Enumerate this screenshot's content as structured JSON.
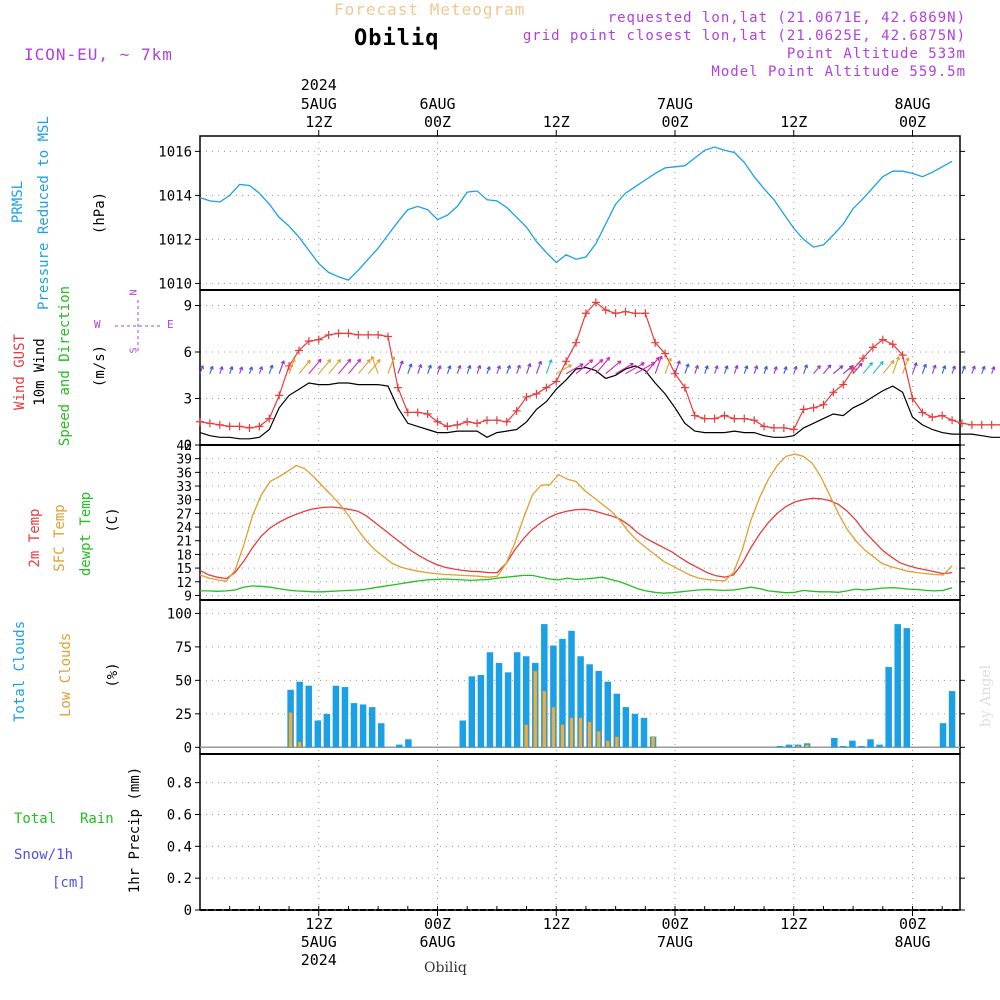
{
  "header": {
    "title": "Forecast Meteogram",
    "location": "Obiliq",
    "model": "ICON-EU, ~ 7km",
    "requested": "requested lon,lat (21.0671E, 42.6869N)",
    "gridpoint": "grid point closest lon,lat (21.0625E, 42.6875N)",
    "point_alt": "Point Altitude 533m",
    "model_alt": "Model Point Altitude 559.5m",
    "footer_location": "Obiliq",
    "watermark": "by Angel"
  },
  "colors": {
    "pressure": "#1ba0e6",
    "gust": "#e83c3c",
    "wind": "#000000",
    "winddir": "#20c020",
    "sfc": "#e0a030",
    "dewpt": "#20c020",
    "cloud_total": "#1ba0e6",
    "cloud_low": "#e0b050",
    "rain": "#20c020",
    "snow": "#5050e0",
    "header_title": "#f0c890",
    "header_meta": "#b040e0"
  },
  "time_axis": {
    "top_year": "2024",
    "ticks": [
      {
        "hour": 12,
        "top": [
          "5AUG",
          "12Z"
        ],
        "bottom": [
          "12Z",
          "5AUG",
          "2024"
        ]
      },
      {
        "hour": 24,
        "top": [
          "6AUG",
          "00Z"
        ],
        "bottom": [
          "00Z",
          "6AUG"
        ]
      },
      {
        "hour": 36,
        "top": [
          "12Z"
        ],
        "bottom": [
          "12Z"
        ]
      },
      {
        "hour": 48,
        "top": [
          "7AUG",
          "00Z"
        ],
        "bottom": [
          "00Z",
          "7AUG"
        ]
      },
      {
        "hour": 60,
        "top": [
          "12Z"
        ],
        "bottom": [
          "12Z"
        ]
      },
      {
        "hour": 72,
        "top": [
          "8AUG",
          "00Z"
        ],
        "bottom": [
          "00Z",
          "8AUG"
        ]
      }
    ]
  },
  "panels": {
    "pressure": {
      "labels": [
        "PRMSL",
        "Pressure Reduced to MSL"
      ],
      "unit": "(hPa)"
    },
    "wind": {
      "labels": [
        "Wind GUST",
        "10m Wind",
        "Speed and Direction"
      ],
      "unit": "(m/s)",
      "compass": {
        "n": "N",
        "s": "S",
        "w": "W",
        "e": "E"
      }
    },
    "temp": {
      "labels": [
        "2m Temp",
        "SFC Temp",
        "dewpt Temp"
      ],
      "unit": "(C)"
    },
    "cloud": {
      "labels": [
        "Total Clouds",
        "Low Clouds"
      ],
      "unit": "(%)"
    },
    "precip": {
      "labels": [
        "Total",
        "Rain",
        "Snow/1h",
        "[cm]"
      ],
      "unit": "1hr Precip (mm)"
    }
  },
  "chart_data": [
    {
      "type": "line",
      "title": "PRMSL Pressure Reduced to MSL",
      "ylabel": "(hPa)",
      "x_hours": "0..76 step 1 from 2024-08-05 00Z",
      "ylim": [
        1009.7,
        1016.7
      ],
      "yticks": [
        1010,
        1012,
        1014,
        1016
      ],
      "series": [
        {
          "name": "PRMSL",
          "values": [
            1013.9,
            1013.75,
            1013.7,
            1014.0,
            1014.5,
            1014.45,
            1014.1,
            1013.6,
            1013.0,
            1012.6,
            1012.1,
            1011.5,
            1010.9,
            1010.5,
            1010.3,
            1010.15,
            1010.6,
            1011.1,
            1011.6,
            1012.2,
            1012.8,
            1013.35,
            1013.5,
            1013.35,
            1012.9,
            1013.1,
            1013.5,
            1014.15,
            1014.2,
            1013.8,
            1013.75,
            1013.45,
            1013.0,
            1012.55,
            1011.9,
            1011.4,
            1010.95,
            1011.3,
            1011.1,
            1011.2,
            1011.8,
            1012.7,
            1013.6,
            1014.1,
            1014.4,
            1014.7,
            1015.0,
            1015.25,
            1015.3,
            1015.35,
            1015.7,
            1016.05,
            1016.2,
            1016.05,
            1015.95,
            1015.5,
            1014.85,
            1014.3,
            1013.8,
            1013.15,
            1012.5,
            1012.0,
            1011.65,
            1011.75,
            1012.2,
            1012.7,
            1013.4,
            1013.85,
            1014.35,
            1014.85,
            1015.1,
            1015.1,
            1015.0,
            1014.85,
            1015.05,
            1015.3,
            1015.55
          ]
        }
      ]
    },
    {
      "type": "line",
      "title": "Wind GUST / 10m Wind Speed and Direction",
      "ylabel": "(m/s)",
      "ylim": [
        0,
        10
      ],
      "yticks": [
        0,
        3,
        6,
        9
      ],
      "series": [
        {
          "name": "Wind GUST",
          "values": [
            1.5,
            1.4,
            1.3,
            1.2,
            1.2,
            1.1,
            1.2,
            1.7,
            3.2,
            5.1,
            6.1,
            6.7,
            6.8,
            7.1,
            7.2,
            7.2,
            7.1,
            7.1,
            7.1,
            7.0,
            3.7,
            2.1,
            2.1,
            2.0,
            1.5,
            1.2,
            1.3,
            1.5,
            1.4,
            1.6,
            1.6,
            1.5,
            2.2,
            3.1,
            3.3,
            3.7,
            4.1,
            5.4,
            6.6,
            8.5,
            9.2,
            8.7,
            8.5,
            8.6,
            8.5,
            8.5,
            6.6,
            5.9,
            4.6,
            3.7,
            1.9,
            1.7,
            1.7,
            1.9,
            1.7,
            1.7,
            1.6,
            1.2,
            1.1,
            1.1,
            1.0,
            2.3,
            2.4,
            2.6,
            3.4,
            3.9,
            4.9,
            5.6,
            6.3,
            6.8,
            6.5,
            5.8,
            3.0,
            2.1,
            1.8,
            1.9,
            1.6,
            1.4,
            1.3,
            1.3,
            1.3,
            1.3
          ]
        },
        {
          "name": "10m Wind",
          "values": [
            0.8,
            0.6,
            0.5,
            0.5,
            0.4,
            0.4,
            0.5,
            1.0,
            2.4,
            3.2,
            3.6,
            4.0,
            3.9,
            3.9,
            4.0,
            4.0,
            3.9,
            3.9,
            3.9,
            3.8,
            2.4,
            1.4,
            1.2,
            1.0,
            0.8,
            0.8,
            0.9,
            0.9,
            0.9,
            0.5,
            0.8,
            0.9,
            1.0,
            1.5,
            2.3,
            2.8,
            3.6,
            4.2,
            4.9,
            5.0,
            4.8,
            4.3,
            4.5,
            4.9,
            5.1,
            4.8,
            4.0,
            3.3,
            2.4,
            1.4,
            0.9,
            0.8,
            0.8,
            0.8,
            0.9,
            0.8,
            0.8,
            0.6,
            0.5,
            0.5,
            0.6,
            1.1,
            1.4,
            1.7,
            2.0,
            1.9,
            2.4,
            2.7,
            3.1,
            3.5,
            3.8,
            3.4,
            1.8,
            1.3,
            1.0,
            0.8,
            0.7,
            0.7,
            0.7,
            0.6,
            0.5,
            0.5
          ]
        },
        {
          "name": "Direction",
          "values": [
            200,
            200,
            200,
            200,
            200,
            200,
            200,
            200,
            200,
            200,
            220,
            220,
            220,
            220,
            220,
            220,
            220,
            220,
            160,
            200,
            200,
            200,
            200,
            200,
            200,
            200,
            200,
            200,
            200,
            200,
            200,
            200,
            200,
            200,
            200,
            200,
            240,
            240,
            230,
            230,
            220,
            230,
            240,
            240,
            240,
            220,
            200,
            200,
            200,
            200,
            200,
            200,
            200,
            200,
            200,
            200,
            200,
            200,
            200,
            200,
            200,
            200,
            220,
            220,
            230,
            230,
            220,
            220,
            220,
            220,
            200,
            200,
            200,
            200,
            200,
            200,
            200,
            200,
            200,
            200,
            200,
            200
          ]
        }
      ]
    },
    {
      "type": "line",
      "title": "2m Temp / SFC Temp / dewpt Temp",
      "ylabel": "(C)",
      "ylim": [
        8,
        42
      ],
      "yticks": [
        9,
        12,
        15,
        18,
        21,
        24,
        27,
        30,
        33,
        36,
        39,
        42
      ],
      "series": [
        {
          "name": "2m Temp",
          "values": [
            14.5,
            13.5,
            13.0,
            12.7,
            14.0,
            16.5,
            19.5,
            22.0,
            23.8,
            25.0,
            26.0,
            26.8,
            27.5,
            28.0,
            28.3,
            28.4,
            28.2,
            27.9,
            27.5,
            26.5,
            25.0,
            23.5,
            22.0,
            20.5,
            19.0,
            17.8,
            16.7,
            15.8,
            15.2,
            14.8,
            14.5,
            14.3,
            14.2,
            14.0,
            14.0,
            16.0,
            19.0,
            21.5,
            23.5,
            25.0,
            26.2,
            27.0,
            27.5,
            27.8,
            27.9,
            27.6,
            27.0,
            26.5,
            25.8,
            24.5,
            22.8,
            21.5,
            20.5,
            19.5,
            18.5,
            17.2,
            16.0,
            15.0,
            14.0,
            13.3,
            13.0,
            13.5,
            16.0,
            19.5,
            22.5,
            25.0,
            27.0,
            28.5,
            29.5,
            30.0,
            30.3,
            30.2,
            29.8,
            29.0,
            27.5,
            25.5,
            23.0,
            21.0,
            19.0,
            17.5,
            16.2,
            15.5,
            15.0,
            14.6,
            14.2,
            13.8,
            14.0
          ]
        },
        {
          "name": "SFC Temp",
          "values": [
            13.5,
            12.8,
            12.4,
            12.1,
            14.5,
            20.0,
            26.5,
            31.0,
            34.0,
            35.0,
            36.2,
            37.5,
            36.8,
            35.0,
            33.0,
            31.0,
            29.0,
            26.5,
            23.5,
            21.0,
            19.0,
            17.5,
            16.0,
            15.2,
            14.7,
            14.3,
            14.0,
            13.8,
            13.6,
            13.5,
            13.4,
            13.3,
            13.2,
            13.0,
            13.2,
            16.0,
            20.5,
            26.0,
            31.0,
            33.2,
            33.3,
            35.5,
            34.5,
            34.0,
            32.0,
            30.5,
            29.0,
            27.5,
            25.5,
            23.0,
            21.0,
            19.5,
            18.0,
            16.5,
            15.5,
            14.5,
            13.5,
            12.8,
            12.5,
            12.3,
            12.2,
            14.0,
            19.0,
            25.5,
            30.5,
            34.5,
            37.5,
            39.5,
            40.0,
            39.5,
            38.0,
            35.0,
            31.0,
            27.0,
            23.5,
            21.0,
            19.0,
            17.5,
            16.0,
            15.3,
            14.8,
            14.3,
            14.0,
            13.8,
            13.6,
            13.5,
            15.5
          ]
        },
        {
          "name": "dewpt Temp",
          "values": [
            10.0,
            10.0,
            9.9,
            10.0,
            10.2,
            10.8,
            11.1,
            11.0,
            10.8,
            10.5,
            10.2,
            10.0,
            9.9,
            9.8,
            9.8,
            9.9,
            10.0,
            10.1,
            10.2,
            10.4,
            10.7,
            11.0,
            11.3,
            11.6,
            11.9,
            12.2,
            12.4,
            12.5,
            12.6,
            12.5,
            12.4,
            12.3,
            12.4,
            12.5,
            12.8,
            13.0,
            13.2,
            13.4,
            13.4,
            13.0,
            12.6,
            12.4,
            12.8,
            12.5,
            12.6,
            12.8,
            13.0,
            12.5,
            12.0,
            11.3,
            10.5,
            10.0,
            9.7,
            9.5,
            9.6,
            9.8,
            10.0,
            10.2,
            10.3,
            10.2,
            10.1,
            10.2,
            10.5,
            10.8,
            10.5,
            10.0,
            9.8,
            9.6,
            9.7,
            10.1,
            9.9,
            9.8,
            9.8,
            9.7,
            10.0,
            10.4,
            10.2,
            10.4,
            10.6,
            10.7,
            10.6,
            10.4,
            10.3,
            10.1,
            10.0,
            10.1,
            10.7
          ]
        }
      ]
    },
    {
      "type": "bar",
      "title": "Total Clouds / Low Clouds",
      "ylabel": "(%)",
      "ylim": [
        -5,
        110
      ],
      "yticks": [
        0,
        25,
        50,
        75,
        100
      ],
      "series": [
        {
          "name": "Total Clouds",
          "values": [
            0,
            0,
            0,
            0,
            0,
            0,
            0,
            0,
            0,
            0,
            43,
            49,
            46,
            20,
            25,
            46,
            45,
            33,
            32,
            30,
            18,
            0,
            2,
            6,
            0,
            0,
            0,
            0,
            0,
            20,
            53,
            54,
            71,
            63,
            56,
            71,
            68,
            63,
            92,
            76,
            81,
            87,
            68,
            62,
            57,
            49,
            40,
            30,
            25,
            22,
            8,
            0,
            0,
            0,
            0,
            0,
            0,
            0,
            0,
            0,
            0,
            0,
            0,
            0,
            1,
            2,
            2,
            3,
            0,
            0,
            7,
            1,
            5,
            1,
            6,
            2,
            60,
            92,
            89,
            0,
            0,
            0,
            18,
            42
          ]
        },
        {
          "name": "Low Clouds",
          "values": [
            0,
            0,
            0,
            0,
            0,
            0,
            0,
            0,
            0,
            0,
            26,
            4,
            0,
            0,
            0,
            0,
            0,
            0,
            0,
            0,
            0,
            0,
            0,
            0,
            0,
            0,
            0,
            0,
            0,
            0,
            0,
            0,
            0,
            0,
            0,
            0,
            17,
            57,
            42,
            30,
            17,
            22,
            22,
            19,
            12,
            5,
            8,
            0,
            0,
            0,
            8,
            0,
            0,
            0,
            0,
            0,
            0,
            0,
            0,
            0,
            0,
            0,
            0,
            0,
            0,
            0,
            1,
            2,
            0,
            0,
            0,
            0,
            0,
            0,
            0,
            0,
            0,
            0,
            0,
            0,
            0,
            0,
            0,
            0
          ]
        }
      ]
    },
    {
      "type": "bar",
      "title": "1hr Precip",
      "ylabel": "1hr Precip (mm)",
      "ylim": [
        0,
        0.98
      ],
      "yticks": [
        0,
        0.2,
        0.4,
        0.6,
        0.8
      ],
      "series": [
        {
          "name": "Total",
          "values": []
        }
      ]
    }
  ]
}
